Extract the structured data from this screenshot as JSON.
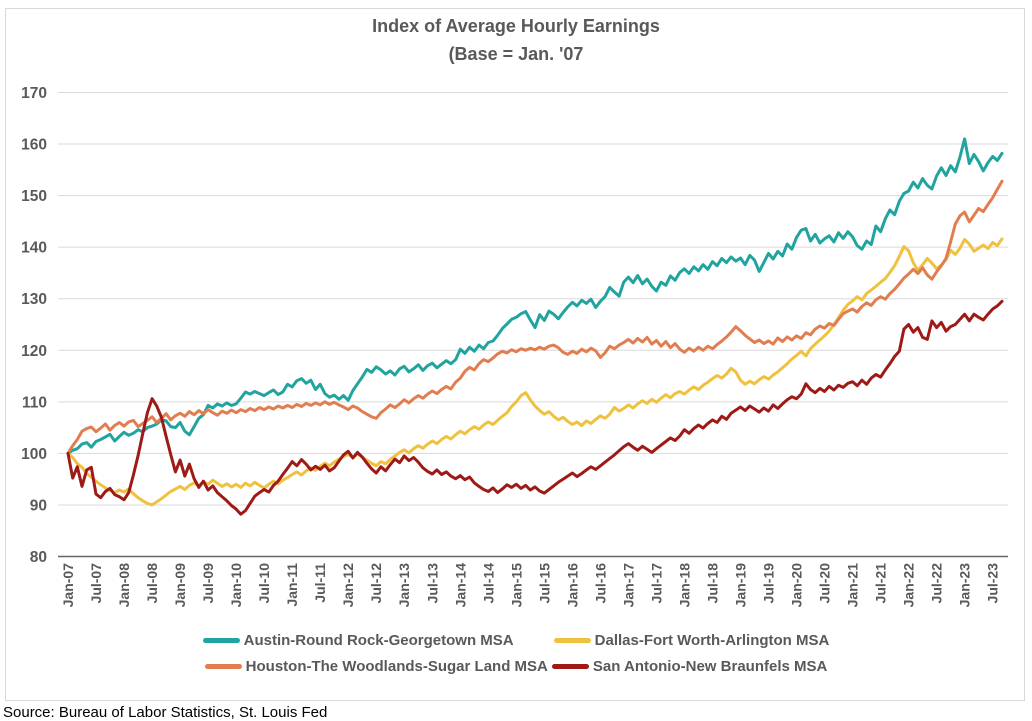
{
  "title": {
    "line1": "Index of Average Hourly Earnings",
    "line2": "(Base = Jan. '07"
  },
  "source": "Source: Bureau of Labor Statistics, St. Louis Fed",
  "colors": {
    "grid": "#D9D9D9",
    "axis": "#666666",
    "tick_text": "#595959",
    "title_text": "#595959",
    "frame_border": "#D9D9D9"
  },
  "chart_data": {
    "type": "line",
    "title": "Index of Average Hourly Earnings",
    "subtitle": "(Base = Jan. '07",
    "x_frequency": "monthly",
    "x_start": "Jan-07",
    "x_end": "Sep-23",
    "ylim": [
      80,
      170
    ],
    "y_tick_step": 10,
    "grid": "horizontal",
    "legend_position": "bottom",
    "x_tick_labels": [
      "Jan-07",
      "Jul-07",
      "Jan-08",
      "Jul-08",
      "Jan-09",
      "Jul-09",
      "Jan-10",
      "Jul-10",
      "Jan-11",
      "Jul-11",
      "Jan-12",
      "Jul-12",
      "Jan-13",
      "Jul-13",
      "Jan-14",
      "Jul-14",
      "Jan-15",
      "Jul-15",
      "Jan-16",
      "Jul-16",
      "Jan-17",
      "Jul-17",
      "Jan-18",
      "Jul-18",
      "Jan-19",
      "Jul-19",
      "Jan-20",
      "Jul-20",
      "Jan-21",
      "Jul-21",
      "Jan-22",
      "Jul-22",
      "Jan-23",
      "Jul-23"
    ],
    "series": [
      {
        "name": "Austin-Round Rock-Georgetown MSA",
        "color": "#21A49F",
        "values": [
          100.0,
          100.6,
          100.9,
          101.8,
          102.1,
          101.2,
          102.3,
          102.7,
          103.2,
          103.7,
          102.4,
          103.3,
          104.1,
          103.5,
          103.9,
          104.6,
          104.2,
          105.0,
          105.3,
          105.7,
          106.5,
          106.3,
          105.2,
          105.0,
          106.0,
          104.3,
          103.6,
          105.2,
          106.8,
          107.5,
          109.3,
          108.8,
          109.6,
          109.2,
          109.8,
          109.3,
          109.6,
          110.7,
          111.9,
          111.5,
          112.0,
          111.6,
          111.2,
          111.8,
          112.3,
          111.4,
          111.9,
          113.4,
          112.9,
          114.1,
          114.5,
          113.6,
          114.2,
          112.4,
          113.4,
          111.6,
          110.9,
          111.3,
          110.5,
          111.2,
          110.3,
          112.2,
          113.5,
          114.8,
          116.3,
          115.7,
          116.8,
          116.2,
          115.4,
          116.0,
          115.2,
          116.4,
          116.9,
          115.8,
          116.4,
          117.2,
          116.1,
          117.0,
          117.5,
          116.6,
          117.3,
          118.0,
          117.4,
          118.2,
          120.2,
          119.4,
          120.6,
          119.8,
          121.0,
          120.3,
          121.5,
          121.8,
          122.9,
          124.2,
          125.1,
          126.0,
          126.4,
          127.1,
          127.5,
          125.9,
          124.4,
          126.9,
          125.8,
          127.6,
          127.0,
          126.1,
          127.3,
          128.4,
          129.3,
          128.6,
          129.7,
          129.1,
          129.9,
          128.3,
          129.5,
          130.4,
          132.2,
          131.3,
          130.5,
          133.2,
          134.2,
          133.1,
          134.5,
          132.9,
          133.8,
          132.4,
          131.5,
          133.2,
          132.6,
          134.4,
          133.6,
          135.1,
          135.8,
          134.9,
          136.2,
          135.4,
          136.6,
          135.7,
          137.2,
          136.4,
          137.8,
          137.0,
          138.1,
          137.3,
          137.9,
          136.6,
          138.4,
          137.5,
          135.3,
          137.0,
          138.8,
          137.7,
          139.2,
          138.3,
          140.6,
          139.6,
          141.9,
          143.3,
          143.6,
          141.2,
          142.5,
          140.8,
          141.6,
          142.2,
          141.0,
          142.8,
          141.7,
          143.0,
          142.0,
          140.3,
          139.6,
          141.2,
          140.5,
          144.1,
          143.0,
          145.5,
          147.2,
          146.3,
          148.9,
          150.4,
          150.9,
          152.6,
          151.5,
          153.3,
          152.0,
          151.3,
          153.8,
          155.4,
          153.9,
          155.8,
          154.6,
          157.5,
          161.0,
          156.2,
          158.0,
          156.6,
          154.8,
          156.4,
          157.6,
          156.8,
          158.2
        ]
      },
      {
        "name": "Dallas-Fort Worth-Arlington MSA",
        "color": "#EFC13E",
        "values": [
          100.0,
          99.2,
          98.0,
          97.3,
          96.1,
          95.4,
          94.6,
          93.9,
          93.3,
          92.8,
          92.4,
          92.9,
          92.5,
          93.1,
          92.2,
          91.4,
          90.8,
          90.3,
          90.0,
          90.6,
          91.2,
          91.9,
          92.6,
          93.1,
          93.6,
          93.0,
          93.8,
          94.3,
          93.7,
          94.5,
          94.0,
          94.8,
          94.2,
          93.6,
          94.1,
          93.5,
          94.0,
          93.4,
          94.2,
          93.7,
          94.4,
          93.8,
          93.3,
          94.0,
          94.6,
          94.1,
          94.8,
          95.3,
          95.9,
          96.4,
          95.8,
          96.6,
          97.2,
          96.7,
          97.5,
          98.1,
          97.6,
          98.3,
          98.9,
          99.4,
          99.8,
          99.2,
          99.9,
          99.3,
          98.7,
          98.1,
          97.6,
          98.4,
          98.0,
          98.8,
          99.5,
          100.2,
          100.7,
          100.1,
          100.9,
          101.5,
          101.0,
          101.8,
          102.4,
          101.9,
          102.7,
          103.3,
          102.8,
          103.6,
          104.3,
          103.8,
          104.6,
          105.2,
          104.7,
          105.5,
          106.1,
          105.6,
          106.4,
          107.2,
          107.9,
          109.1,
          110.0,
          111.2,
          111.8,
          110.4,
          109.2,
          108.3,
          107.6,
          108.1,
          107.2,
          106.5,
          107.0,
          106.2,
          105.6,
          106.1,
          105.4,
          106.3,
          105.8,
          106.6,
          107.3,
          106.8,
          107.6,
          108.9,
          108.2,
          108.7,
          109.4,
          108.8,
          109.6,
          110.2,
          109.7,
          110.5,
          109.9,
          110.7,
          111.4,
          110.8,
          111.6,
          112.0,
          111.5,
          112.3,
          112.9,
          112.4,
          113.2,
          113.8,
          114.5,
          115.1,
          114.6,
          115.4,
          116.5,
          115.8,
          114.2,
          113.4,
          114.0,
          113.5,
          114.3,
          114.9,
          114.4,
          115.2,
          115.8,
          116.6,
          117.4,
          118.3,
          119.0,
          119.8,
          118.9,
          120.3,
          121.2,
          122.0,
          122.8,
          123.7,
          125.0,
          126.3,
          127.8,
          128.9,
          129.6,
          130.4,
          129.8,
          131.0,
          131.7,
          132.4,
          133.2,
          133.9,
          135.1,
          136.4,
          138.2,
          140.1,
          139.3,
          137.0,
          135.5,
          136.6,
          137.8,
          136.9,
          135.8,
          136.5,
          137.6,
          139.4,
          138.6,
          139.8,
          141.5,
          140.6,
          139.2,
          139.8,
          140.4,
          139.7,
          140.9,
          140.3,
          141.6
        ]
      },
      {
        "name": "Houston-The Woodlands-Sugar Land MSA",
        "color": "#E27D50",
        "values": [
          100.0,
          101.5,
          102.7,
          104.3,
          104.8,
          105.1,
          104.2,
          104.9,
          105.7,
          104.5,
          105.4,
          106.0,
          105.3,
          106.1,
          106.4,
          105.2,
          105.8,
          106.4,
          107.1,
          106.0,
          106.8,
          107.7,
          106.5,
          107.3,
          107.8,
          107.2,
          108.1,
          107.5,
          108.3,
          107.7,
          108.5,
          107.9,
          107.4,
          108.2,
          107.8,
          108.4,
          107.9,
          108.5,
          108.1,
          108.7,
          108.3,
          108.9,
          108.5,
          109.0,
          108.6,
          109.2,
          108.8,
          109.3,
          108.9,
          109.5,
          109.1,
          109.7,
          109.3,
          109.8,
          109.4,
          110.0,
          109.5,
          109.9,
          109.4,
          109.0,
          108.5,
          109.2,
          108.8,
          108.1,
          107.6,
          107.1,
          106.8,
          107.9,
          108.6,
          109.4,
          108.9,
          109.6,
          110.4,
          109.8,
          110.6,
          111.2,
          110.7,
          111.5,
          112.1,
          111.6,
          112.4,
          113.0,
          112.5,
          113.8,
          114.6,
          115.9,
          116.7,
          116.2,
          117.4,
          118.2,
          117.8,
          118.5,
          119.3,
          119.8,
          119.5,
          120.1,
          119.7,
          120.3,
          120.0,
          120.4,
          120.1,
          120.6,
          120.2,
          120.8,
          121.0,
          120.5,
          119.6,
          119.2,
          119.8,
          119.4,
          120.2,
          119.7,
          120.4,
          119.9,
          118.6,
          119.5,
          120.8,
          120.3,
          121.0,
          121.5,
          122.1,
          121.4,
          122.3,
          121.6,
          122.5,
          121.2,
          121.9,
          120.8,
          121.7,
          120.5,
          121.3,
          120.2,
          119.6,
          120.4,
          119.8,
          120.6,
          120.0,
          120.8,
          120.3,
          121.1,
          121.8,
          122.6,
          123.5,
          124.6,
          123.8,
          122.9,
          122.2,
          121.5,
          122.0,
          121.3,
          121.8,
          121.2,
          122.4,
          121.7,
          122.6,
          122.0,
          122.8,
          122.3,
          123.4,
          123.0,
          124.1,
          124.7,
          124.3,
          125.2,
          124.8,
          126.0,
          127.1,
          127.6,
          128.0,
          127.4,
          128.5,
          129.2,
          128.7,
          129.8,
          130.4,
          129.9,
          131.0,
          131.8,
          132.9,
          134.0,
          134.8,
          135.7,
          134.9,
          136.0,
          134.6,
          133.8,
          135.2,
          136.4,
          137.8,
          141.0,
          144.5,
          146.1,
          146.8,
          144.9,
          146.2,
          147.5,
          146.9,
          148.3,
          149.6,
          151.2,
          152.8
        ]
      },
      {
        "name": "San Antonio-New Braunfels MSA",
        "color": "#9E1A17",
        "values": [
          100.0,
          95.2,
          97.4,
          93.6,
          96.8,
          97.3,
          92.1,
          91.4,
          92.6,
          93.2,
          92.0,
          91.6,
          91.0,
          92.4,
          95.8,
          99.6,
          103.8,
          107.9,
          110.6,
          109.2,
          107.0,
          103.3,
          99.8,
          96.4,
          98.7,
          95.6,
          97.9,
          95.1,
          93.4,
          94.6,
          92.9,
          93.7,
          92.4,
          91.6,
          90.8,
          89.9,
          89.2,
          88.2,
          88.9,
          90.3,
          91.7,
          92.4,
          93.0,
          92.5,
          93.8,
          94.6,
          95.9,
          97.1,
          98.4,
          97.6,
          98.8,
          97.9,
          96.8,
          97.5,
          96.9,
          97.7,
          96.6,
          97.2,
          98.5,
          99.7,
          100.4,
          99.1,
          100.2,
          99.3,
          98.1,
          97.0,
          96.2,
          97.4,
          96.6,
          97.8,
          98.9,
          98.2,
          99.5,
          98.6,
          99.2,
          98.3,
          97.2,
          96.5,
          96.0,
          96.8,
          95.9,
          96.4,
          95.6,
          95.1,
          95.7,
          94.9,
          95.4,
          94.3,
          93.6,
          93.0,
          92.6,
          93.3,
          92.4,
          93.1,
          93.9,
          93.4,
          94.0,
          93.2,
          93.8,
          92.9,
          93.5,
          92.7,
          92.3,
          93.0,
          93.7,
          94.4,
          95.0,
          95.6,
          96.2,
          95.5,
          96.1,
          96.8,
          97.4,
          96.9,
          97.6,
          98.3,
          99.0,
          99.7,
          100.5,
          101.3,
          101.9,
          101.2,
          100.6,
          101.4,
          100.8,
          100.2,
          100.9,
          101.6,
          102.3,
          103.0,
          102.5,
          103.4,
          104.6,
          103.9,
          104.8,
          105.5,
          104.9,
          105.8,
          106.5,
          106.0,
          107.2,
          106.6,
          107.8,
          108.4,
          109.0,
          108.3,
          109.2,
          108.6,
          108.0,
          108.8,
          108.2,
          109.4,
          108.7,
          109.6,
          110.4,
          111.0,
          110.6,
          111.5,
          113.5,
          112.4,
          111.8,
          112.6,
          112.0,
          113.0,
          112.3,
          113.2,
          112.8,
          113.6,
          113.9,
          113.1,
          114.2,
          113.4,
          114.6,
          115.3,
          114.8,
          116.2,
          117.4,
          118.8,
          119.8,
          124.1,
          125.0,
          123.5,
          124.4,
          122.5,
          122.1,
          125.7,
          124.4,
          125.4,
          123.7,
          124.6,
          125.0,
          126.0,
          127.0,
          125.7,
          127.0,
          126.4,
          125.9,
          127.0,
          128.0,
          128.6,
          129.5
        ]
      }
    ]
  }
}
